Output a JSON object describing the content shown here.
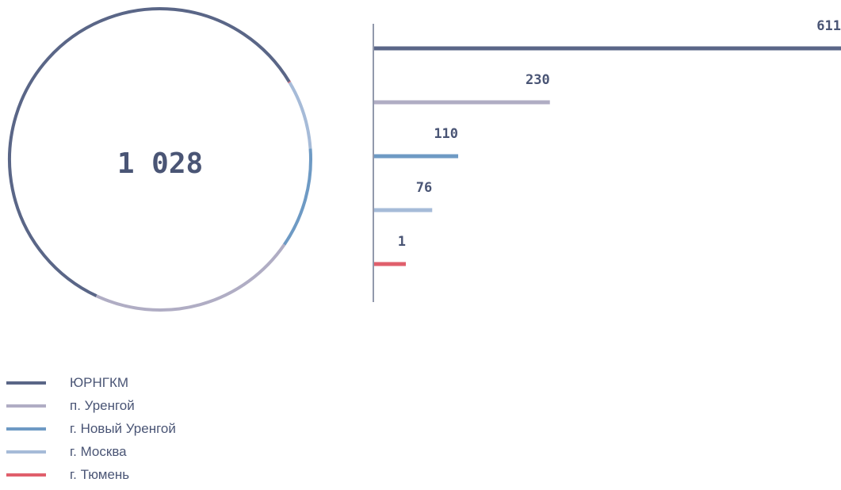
{
  "chart_data": {
    "type": "bar",
    "total": "1 028",
    "categories": [
      "ЮРНГКМ",
      "п. Уренгой",
      "г. Новый Уренгой",
      "г. Москва",
      "г. Тюмень"
    ],
    "values": [
      611,
      230,
      110,
      76,
      1
    ],
    "value_labels": [
      "611",
      "230",
      "110",
      "76",
      "1"
    ],
    "colors": [
      "#5a6687",
      "#b0adc4",
      "#6e9ac4",
      "#a6bbd8",
      "#e05f6c"
    ],
    "donut_segments": [
      {
        "category": "ЮРНГКМ",
        "value": 611
      },
      {
        "category": "г. Тюмень",
        "value": 1
      },
      {
        "category": "г. Москва",
        "value": 76
      },
      {
        "category": "г. Новый Уренгой",
        "value": 110
      },
      {
        "category": "п. Уренгой",
        "value": 230
      }
    ],
    "text_color": "#4a5575",
    "axis_color": "#4a5575"
  }
}
